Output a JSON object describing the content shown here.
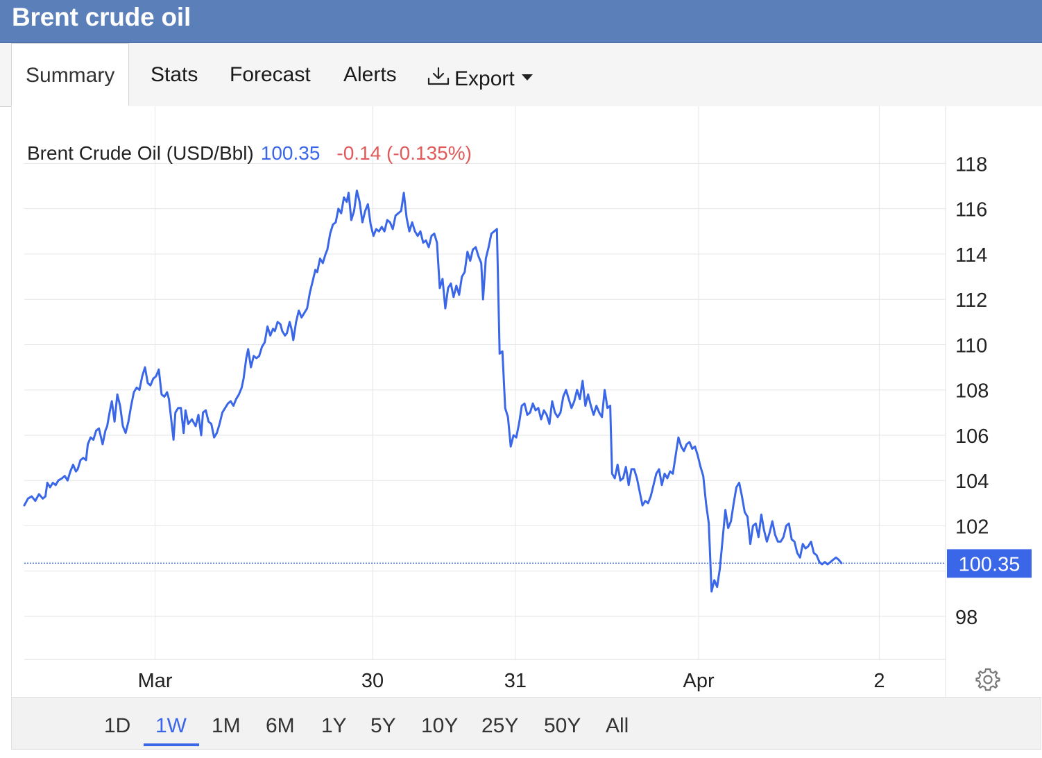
{
  "header": {
    "title": "Brent crude oil"
  },
  "tabs": [
    {
      "label": "Summary",
      "active": true
    },
    {
      "label": "Stats",
      "active": false
    },
    {
      "label": "Forecast",
      "active": false
    },
    {
      "label": "Alerts",
      "active": false
    },
    {
      "label": "Export",
      "active": false,
      "icon": "download-icon",
      "has_dropdown": true
    }
  ],
  "legend": {
    "name": "Brent Crude Oil (USD/Bbl)",
    "price": "100.35",
    "change": "-0.14 (-0.135%)"
  },
  "colors": {
    "header": "#5b7fb8",
    "series": "#3a66e8",
    "change_negative": "#e05a5a",
    "price_text": "#3a66e8",
    "grid": "#e6e6e6"
  },
  "ranges": [
    {
      "label": "1D",
      "active": false
    },
    {
      "label": "1W",
      "active": true
    },
    {
      "label": "1M",
      "active": false
    },
    {
      "label": "6M",
      "active": false
    },
    {
      "label": "1Y",
      "active": false
    },
    {
      "label": "5Y",
      "active": false
    },
    {
      "label": "10Y",
      "active": false
    },
    {
      "label": "25Y",
      "active": false
    },
    {
      "label": "50Y",
      "active": false
    },
    {
      "label": "All",
      "active": false
    }
  ],
  "settings_icon": "gear-icon",
  "chart_data": {
    "type": "line",
    "series": [
      {
        "name": "Brent Crude Oil (USD/Bbl)"
      }
    ],
    "ylim": [
      96.1,
      119.3
    ],
    "y_ticks": [
      98,
      100,
      102,
      104,
      106,
      108,
      110,
      112,
      114,
      116,
      118
    ],
    "y_tick_labels": [
      "98",
      "",
      "102",
      "104",
      "106",
      "108",
      "110",
      "112",
      "114",
      "116",
      "118"
    ],
    "x_ticks": [
      {
        "label": "Mar",
        "x": 0.142
      },
      {
        "label": "30",
        "x": 0.378
      },
      {
        "label": "31",
        "x": 0.533
      },
      {
        "label": "Apr",
        "x": 0.732
      },
      {
        "label": "2",
        "x": 0.928
      }
    ],
    "last_value": 100.35,
    "last_value_label": "100.35",
    "grid": true,
    "points": [
      [
        0.0,
        102.9
      ],
      [
        0.004,
        103.2
      ],
      [
        0.008,
        103.3
      ],
      [
        0.012,
        103.1
      ],
      [
        0.016,
        103.4
      ],
      [
        0.02,
        103.2
      ],
      [
        0.023,
        103.3
      ],
      [
        0.025,
        103.9
      ],
      [
        0.028,
        103.7
      ],
      [
        0.031,
        103.9
      ],
      [
        0.034,
        103.8
      ],
      [
        0.037,
        104.0
      ],
      [
        0.041,
        104.1
      ],
      [
        0.044,
        104.2
      ],
      [
        0.047,
        104.0
      ],
      [
        0.05,
        104.4
      ],
      [
        0.053,
        104.7
      ],
      [
        0.056,
        104.4
      ],
      [
        0.058,
        104.5
      ],
      [
        0.061,
        104.9
      ],
      [
        0.064,
        105.0
      ],
      [
        0.067,
        104.9
      ],
      [
        0.069,
        105.6
      ],
      [
        0.072,
        105.9
      ],
      [
        0.075,
        105.8
      ],
      [
        0.078,
        106.2
      ],
      [
        0.081,
        106.3
      ],
      [
        0.085,
        105.6
      ],
      [
        0.088,
        106.2
      ],
      [
        0.09,
        106.4
      ],
      [
        0.093,
        107.1
      ],
      [
        0.095,
        107.5
      ],
      [
        0.098,
        106.6
      ],
      [
        0.101,
        107.8
      ],
      [
        0.104,
        107.3
      ],
      [
        0.107,
        106.4
      ],
      [
        0.11,
        106.1
      ],
      [
        0.113,
        106.6
      ],
      [
        0.116,
        107.3
      ],
      [
        0.119,
        107.9
      ],
      [
        0.122,
        108.1
      ],
      [
        0.125,
        108.0
      ],
      [
        0.128,
        108.6
      ],
      [
        0.131,
        109.0
      ],
      [
        0.134,
        108.3
      ],
      [
        0.137,
        108.2
      ],
      [
        0.14,
        108.5
      ],
      [
        0.143,
        108.6
      ],
      [
        0.146,
        108.9
      ],
      [
        0.149,
        107.8
      ],
      [
        0.152,
        107.7
      ],
      [
        0.155,
        107.9
      ],
      [
        0.157,
        107.6
      ],
      [
        0.162,
        105.8
      ],
      [
        0.164,
        107.0
      ],
      [
        0.167,
        107.2
      ],
      [
        0.17,
        107.2
      ],
      [
        0.173,
        106.1
      ],
      [
        0.175,
        107.1
      ],
      [
        0.178,
        106.5
      ],
      [
        0.182,
        106.7
      ],
      [
        0.186,
        106.4
      ],
      [
        0.189,
        106.9
      ],
      [
        0.192,
        106.0
      ],
      [
        0.194,
        107.0
      ],
      [
        0.197,
        107.1
      ],
      [
        0.2,
        106.6
      ],
      [
        0.203,
        106.5
      ],
      [
        0.206,
        105.9
      ],
      [
        0.209,
        106.1
      ],
      [
        0.212,
        106.5
      ],
      [
        0.215,
        107.0
      ],
      [
        0.218,
        107.2
      ],
      [
        0.221,
        107.4
      ],
      [
        0.224,
        107.5
      ],
      [
        0.227,
        107.3
      ],
      [
        0.23,
        107.6
      ],
      [
        0.233,
        107.8
      ],
      [
        0.236,
        108.1
      ],
      [
        0.238,
        108.5
      ],
      [
        0.241,
        109.4
      ],
      [
        0.243,
        109.8
      ],
      [
        0.246,
        109.0
      ],
      [
        0.249,
        109.5
      ],
      [
        0.252,
        109.4
      ],
      [
        0.255,
        109.5
      ],
      [
        0.258,
        109.9
      ],
      [
        0.261,
        110.1
      ],
      [
        0.264,
        110.8
      ],
      [
        0.267,
        110.4
      ],
      [
        0.27,
        110.7
      ],
      [
        0.272,
        110.6
      ],
      [
        0.275,
        111.0
      ],
      [
        0.278,
        110.9
      ],
      [
        0.28,
        110.6
      ],
      [
        0.283,
        110.4
      ],
      [
        0.285,
        110.5
      ],
      [
        0.288,
        111.0
      ],
      [
        0.29,
        110.7
      ],
      [
        0.292,
        110.2
      ],
      [
        0.295,
        111.0
      ],
      [
        0.298,
        111.5
      ],
      [
        0.301,
        111.2
      ],
      [
        0.304,
        111.4
      ],
      [
        0.307,
        111.6
      ],
      [
        0.31,
        112.3
      ],
      [
        0.313,
        112.8
      ],
      [
        0.316,
        113.3
      ],
      [
        0.318,
        113.2
      ],
      [
        0.321,
        113.8
      ],
      [
        0.324,
        113.6
      ],
      [
        0.327,
        114.0
      ],
      [
        0.329,
        114.2
      ],
      [
        0.332,
        114.9
      ],
      [
        0.335,
        115.3
      ],
      [
        0.338,
        115.4
      ],
      [
        0.341,
        116.0
      ],
      [
        0.344,
        115.8
      ],
      [
        0.347,
        116.5
      ],
      [
        0.35,
        116.3
      ],
      [
        0.352,
        116.7
      ],
      [
        0.355,
        115.5
      ],
      [
        0.358,
        115.9
      ],
      [
        0.361,
        116.8
      ],
      [
        0.364,
        116.3
      ],
      [
        0.367,
        115.4
      ],
      [
        0.37,
        115.9
      ],
      [
        0.373,
        116.2
      ],
      [
        0.376,
        115.3
      ],
      [
        0.379,
        114.8
      ],
      [
        0.382,
        115.1
      ],
      [
        0.385,
        115.0
      ],
      [
        0.388,
        115.2
      ],
      [
        0.391,
        115.0
      ],
      [
        0.394,
        115.5
      ],
      [
        0.397,
        115.4
      ],
      [
        0.4,
        115.1
      ],
      [
        0.403,
        115.7
      ],
      [
        0.406,
        115.8
      ],
      [
        0.409,
        115.9
      ],
      [
        0.412,
        116.7
      ],
      [
        0.415,
        115.6
      ],
      [
        0.418,
        115.0
      ],
      [
        0.421,
        115.4
      ],
      [
        0.424,
        115.0
      ],
      [
        0.427,
        114.8
      ],
      [
        0.43,
        115.0
      ],
      [
        0.433,
        114.5
      ],
      [
        0.436,
        114.6
      ],
      [
        0.439,
        114.3
      ],
      [
        0.442,
        114.8
      ],
      [
        0.445,
        114.9
      ],
      [
        0.448,
        114.5
      ],
      [
        0.451,
        112.5
      ],
      [
        0.454,
        112.9
      ],
      [
        0.457,
        111.6
      ],
      [
        0.46,
        112.5
      ],
      [
        0.463,
        112.7
      ],
      [
        0.466,
        112.1
      ],
      [
        0.469,
        112.6
      ],
      [
        0.472,
        112.2
      ],
      [
        0.475,
        113.0
      ],
      [
        0.478,
        113.2
      ],
      [
        0.481,
        114.1
      ],
      [
        0.484,
        113.7
      ],
      [
        0.487,
        114.2
      ],
      [
        0.49,
        114.3
      ],
      [
        0.493,
        113.9
      ],
      [
        0.496,
        113.6
      ],
      [
        0.498,
        112.0
      ],
      [
        0.501,
        113.8
      ],
      [
        0.504,
        114.3
      ],
      [
        0.507,
        114.9
      ],
      [
        0.51,
        115.0
      ],
      [
        0.513,
        115.1
      ],
      [
        0.516,
        109.6
      ],
      [
        0.519,
        109.7
      ],
      [
        0.522,
        107.2
      ],
      [
        0.525,
        106.8
      ],
      [
        0.528,
        105.5
      ],
      [
        0.531,
        106.0
      ],
      [
        0.534,
        105.9
      ],
      [
        0.537,
        106.5
      ],
      [
        0.54,
        107.3
      ],
      [
        0.543,
        107.4
      ],
      [
        0.546,
        106.9
      ],
      [
        0.549,
        107.0
      ],
      [
        0.552,
        107.4
      ],
      [
        0.555,
        107.1
      ],
      [
        0.558,
        107.2
      ],
      [
        0.561,
        106.7
      ],
      [
        0.564,
        107.1
      ],
      [
        0.567,
        106.9
      ],
      [
        0.57,
        106.5
      ],
      [
        0.573,
        107.5
      ],
      [
        0.576,
        107.0
      ],
      [
        0.579,
        106.8
      ],
      [
        0.582,
        107.0
      ],
      [
        0.585,
        107.7
      ],
      [
        0.588,
        108.0
      ],
      [
        0.591,
        107.6
      ],
      [
        0.594,
        107.2
      ],
      [
        0.597,
        107.5
      ],
      [
        0.6,
        108.0
      ],
      [
        0.603,
        107.6
      ],
      [
        0.606,
        108.4
      ],
      [
        0.609,
        107.3
      ],
      [
        0.612,
        107.8
      ],
      [
        0.615,
        107.3
      ],
      [
        0.618,
        106.9
      ],
      [
        0.621,
        107.3
      ],
      [
        0.624,
        107.0
      ],
      [
        0.627,
        106.8
      ],
      [
        0.63,
        108.0
      ],
      [
        0.633,
        107.2
      ],
      [
        0.636,
        107.3
      ],
      [
        0.638,
        104.3
      ],
      [
        0.641,
        104.1
      ],
      [
        0.644,
        104.7
      ],
      [
        0.647,
        104.0
      ],
      [
        0.65,
        104.1
      ],
      [
        0.653,
        104.6
      ],
      [
        0.656,
        103.8
      ],
      [
        0.659,
        104.5
      ],
      [
        0.662,
        104.5
      ],
      [
        0.665,
        104.1
      ],
      [
        0.668,
        103.5
      ],
      [
        0.671,
        102.9
      ],
      [
        0.674,
        103.1
      ],
      [
        0.677,
        103.0
      ],
      [
        0.68,
        103.3
      ],
      [
        0.683,
        103.8
      ],
      [
        0.686,
        104.3
      ],
      [
        0.689,
        104.5
      ],
      [
        0.692,
        103.8
      ],
      [
        0.695,
        104.3
      ],
      [
        0.698,
        104.1
      ],
      [
        0.701,
        104.4
      ],
      [
        0.704,
        104.3
      ],
      [
        0.707,
        105.1
      ],
      [
        0.71,
        105.9
      ],
      [
        0.713,
        105.5
      ],
      [
        0.716,
        105.3
      ],
      [
        0.719,
        105.6
      ],
      [
        0.722,
        105.7
      ],
      [
        0.725,
        105.4
      ],
      [
        0.728,
        105.5
      ],
      [
        0.731,
        105.1
      ],
      [
        0.734,
        104.6
      ],
      [
        0.737,
        104.2
      ],
      [
        0.74,
        103.0
      ],
      [
        0.743,
        102.1
      ],
      [
        0.746,
        99.1
      ],
      [
        0.749,
        99.6
      ],
      [
        0.752,
        99.3
      ],
      [
        0.755,
        100.1
      ],
      [
        0.758,
        101.4
      ],
      [
        0.761,
        102.7
      ],
      [
        0.764,
        101.9
      ],
      [
        0.767,
        102.2
      ],
      [
        0.77,
        103.0
      ],
      [
        0.773,
        103.7
      ],
      [
        0.776,
        103.9
      ],
      [
        0.779,
        103.3
      ],
      [
        0.782,
        102.6
      ],
      [
        0.785,
        102.4
      ],
      [
        0.788,
        101.2
      ],
      [
        0.791,
        102.0
      ],
      [
        0.794,
        102.1
      ],
      [
        0.797,
        101.5
      ],
      [
        0.8,
        102.5
      ],
      [
        0.803,
        101.8
      ],
      [
        0.806,
        101.3
      ],
      [
        0.809,
        101.7
      ],
      [
        0.812,
        102.2
      ],
      [
        0.815,
        101.6
      ],
      [
        0.818,
        101.3
      ],
      [
        0.821,
        101.3
      ],
      [
        0.824,
        101.5
      ],
      [
        0.827,
        102.0
      ],
      [
        0.83,
        102.1
      ],
      [
        0.833,
        101.4
      ],
      [
        0.836,
        101.3
      ],
      [
        0.839,
        100.8
      ],
      [
        0.842,
        100.6
      ],
      [
        0.845,
        101.2
      ],
      [
        0.848,
        101.0
      ],
      [
        0.851,
        101.1
      ],
      [
        0.854,
        101.3
      ],
      [
        0.857,
        100.8
      ],
      [
        0.86,
        100.7
      ],
      [
        0.863,
        100.4
      ],
      [
        0.866,
        100.3
      ],
      [
        0.869,
        100.4
      ],
      [
        0.872,
        100.3
      ],
      [
        0.875,
        100.4
      ],
      [
        0.878,
        100.5
      ],
      [
        0.881,
        100.6
      ],
      [
        0.884,
        100.5
      ],
      [
        0.887,
        100.35
      ]
    ]
  }
}
